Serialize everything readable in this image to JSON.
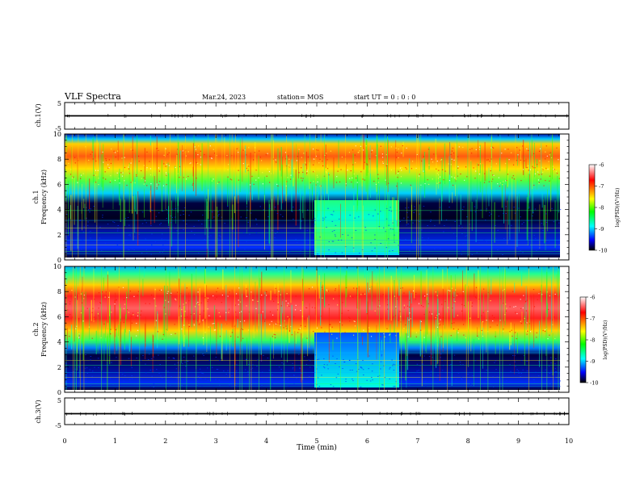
{
  "header": {
    "title": "VLF Spectra",
    "date": "Mar.24, 2023",
    "station": "station= MOS",
    "start": "start  UT =  0 : 0 : 0"
  },
  "chart_data": [
    {
      "type": "line",
      "ylabel": "ch.1(V)",
      "ylim": [
        -5,
        5
      ],
      "yticks": [
        "5",
        "-5"
      ],
      "series_level": 0
    },
    {
      "type": "heatmap",
      "ylabel_line1": "ch.1",
      "ylabel_line2": "Frequency (kHz)",
      "ylim": [
        0,
        10
      ],
      "yticks": [
        "0",
        "2",
        "4",
        "6",
        "8",
        "10"
      ],
      "colorbar": {
        "label": "log(PSD)(V²/Hz)",
        "ticks": [
          "-6",
          "-7",
          "-8",
          "-9",
          "-10"
        ],
        "range": [
          -10,
          -6
        ]
      }
    },
    {
      "type": "heatmap",
      "ylabel_line1": "ch.2",
      "ylabel_line2": "Frequency (kHz)",
      "ylim": [
        0,
        10
      ],
      "yticks": [
        "0",
        "2",
        "4",
        "6",
        "8",
        "10"
      ],
      "colorbar": {
        "label": "log(PSD)(V²/Hz)",
        "ticks": [
          "-6",
          "-7",
          "-8",
          "-9",
          "-10"
        ],
        "range": [
          -10,
          -6
        ]
      }
    },
    {
      "type": "line",
      "ylabel": "ch.3(V)",
      "ylim": [
        -5,
        5
      ],
      "yticks": [
        "5",
        "-5"
      ],
      "series_level": 0
    }
  ],
  "xaxis": {
    "label": "Time (min)",
    "xlim": [
      0,
      10
    ],
    "ticks": [
      "0",
      "1",
      "2",
      "3",
      "4",
      "5",
      "6",
      "7",
      "8",
      "9",
      "10"
    ]
  },
  "colors": {
    "colormap": [
      "#000000",
      "#0000ff",
      "#00ffff",
      "#00ff00",
      "#ffff00",
      "#ff0000",
      "#ffffff"
    ]
  }
}
